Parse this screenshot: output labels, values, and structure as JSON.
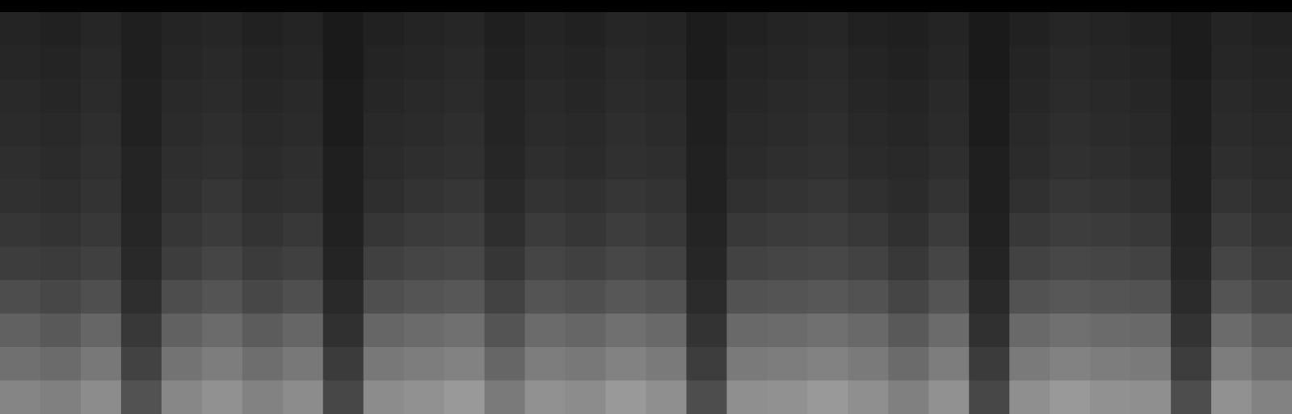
{
  "chart_data": {
    "type": "heatmap",
    "tick_labels": false,
    "grid": false,
    "color": "#ffffff",
    "color_range": [
      0,
      100
    ],
    "cells": [
      [
        14,
        13,
        15,
        12,
        14,
        15,
        13,
        14,
        10,
        13,
        14,
        15,
        12,
        14,
        13,
        15,
        14,
        11,
        13,
        14,
        15,
        13,
        12,
        14,
        10,
        13,
        15,
        14,
        13,
        11,
        14,
        13
      ],
      [
        15,
        14,
        16,
        12,
        15,
        16,
        14,
        15,
        10,
        14,
        15,
        16,
        13,
        15,
        14,
        16,
        15,
        11,
        14,
        15,
        16,
        14,
        13,
        15,
        10,
        14,
        16,
        15,
        14,
        11,
        15,
        14
      ],
      [
        16,
        15,
        17,
        13,
        16,
        17,
        15,
        16,
        11,
        15,
        16,
        17,
        14,
        16,
        15,
        17,
        16,
        12,
        15,
        16,
        17,
        15,
        14,
        16,
        11,
        15,
        17,
        16,
        15,
        12,
        16,
        15
      ],
      [
        17,
        16,
        18,
        13,
        17,
        18,
        16,
        17,
        11,
        16,
        17,
        18,
        14,
        17,
        16,
        18,
        17,
        12,
        16,
        17,
        18,
        16,
        15,
        17,
        11,
        16,
        18,
        17,
        16,
        12,
        17,
        16
      ],
      [
        18,
        17,
        19,
        14,
        18,
        19,
        17,
        18,
        12,
        17,
        18,
        19,
        15,
        18,
        17,
        19,
        18,
        13,
        17,
        18,
        19,
        17,
        16,
        18,
        12,
        17,
        19,
        18,
        17,
        13,
        18,
        17
      ],
      [
        19,
        18,
        20,
        14,
        19,
        21,
        18,
        19,
        12,
        18,
        20,
        21,
        16,
        20,
        19,
        21,
        20,
        13,
        19,
        20,
        21,
        19,
        17,
        20,
        12,
        19,
        21,
        20,
        19,
        13,
        20,
        18
      ],
      [
        21,
        20,
        22,
        15,
        21,
        23,
        20,
        22,
        13,
        21,
        23,
        24,
        18,
        23,
        21,
        24,
        22,
        14,
        22,
        23,
        24,
        22,
        19,
        23,
        13,
        22,
        24,
        23,
        22,
        14,
        23,
        20
      ],
      [
        24,
        23,
        25,
        16,
        24,
        27,
        23,
        25,
        14,
        25,
        27,
        28,
        21,
        27,
        25,
        28,
        26,
        15,
        26,
        27,
        28,
        26,
        22,
        27,
        14,
        26,
        28,
        27,
        26,
        15,
        27,
        23
      ],
      [
        30,
        28,
        31,
        18,
        30,
        33,
        28,
        31,
        16,
        31,
        33,
        34,
        26,
        33,
        31,
        34,
        32,
        17,
        32,
        33,
        34,
        32,
        27,
        33,
        16,
        32,
        34,
        33,
        32,
        17,
        33,
        28
      ],
      [
        38,
        35,
        40,
        22,
        38,
        42,
        36,
        40,
        19,
        40,
        42,
        44,
        33,
        42,
        40,
        44,
        41,
        20,
        41,
        42,
        44,
        41,
        35,
        42,
        19,
        41,
        44,
        42,
        41,
        20,
        42,
        36
      ],
      [
        44,
        42,
        47,
        26,
        45,
        49,
        43,
        47,
        23,
        47,
        49,
        51,
        40,
        49,
        47,
        51,
        48,
        24,
        48,
        49,
        51,
        48,
        42,
        49,
        23,
        48,
        51,
        49,
        48,
        24,
        49,
        43
      ],
      [
        52,
        50,
        55,
        32,
        53,
        57,
        51,
        55,
        28,
        55,
        57,
        60,
        48,
        57,
        55,
        60,
        56,
        30,
        56,
        57,
        60,
        56,
        50,
        57,
        28,
        56,
        60,
        57,
        56,
        30,
        57,
        51
      ]
    ]
  }
}
